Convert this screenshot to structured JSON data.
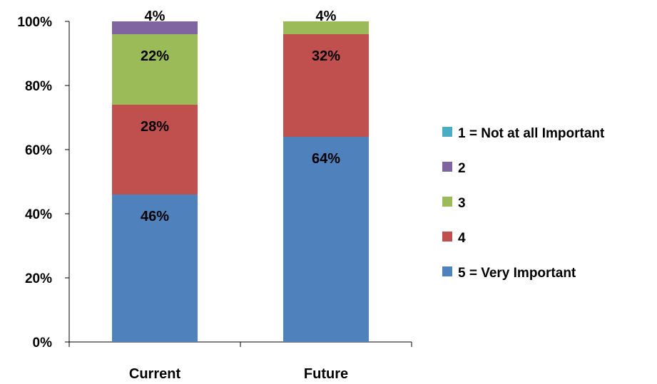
{
  "chart_data": {
    "type": "bar",
    "stacked": true,
    "title": "",
    "xlabel": "",
    "ylabel": "",
    "ylim": [
      0,
      100
    ],
    "y_ticks": [
      "0%",
      "20%",
      "40%",
      "60%",
      "80%",
      "100%"
    ],
    "grid": false,
    "legend_position": "right",
    "categories": [
      "Current",
      "Future"
    ],
    "series": [
      {
        "name": "5 = Very Important",
        "color": "#4F81BD",
        "values": [
          46,
          64
        ],
        "labels": [
          "46%",
          "64%"
        ]
      },
      {
        "name": "4",
        "color": "#C0504D",
        "values": [
          28,
          32
        ],
        "labels": [
          "28%",
          "32%"
        ]
      },
      {
        "name": "3",
        "color": "#9BBB59",
        "values": [
          22,
          4
        ],
        "labels": [
          "22%",
          "4%"
        ]
      },
      {
        "name": "2",
        "color": "#8064A2",
        "values": [
          4,
          0
        ],
        "labels": [
          "4%",
          ""
        ]
      },
      {
        "name": "1 = Not at all Important",
        "color": "#4BACC6",
        "values": [
          0,
          0
        ],
        "labels": [
          "",
          ""
        ]
      }
    ],
    "legend_order": [
      "1 = Not at all Important",
      "2",
      "3",
      "4",
      "5 = Very Important"
    ]
  }
}
